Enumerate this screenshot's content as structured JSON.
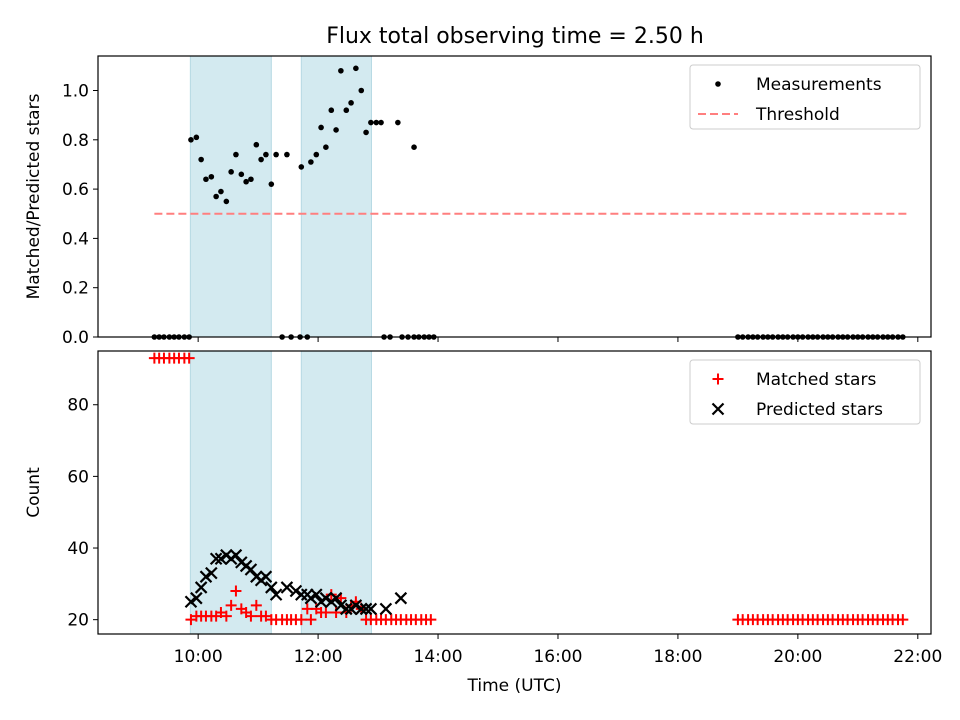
{
  "title": "Flux total observing time = 2.50 h",
  "chart_data": [
    {
      "type": "scatter",
      "panel": "top",
      "title": "Flux total observing time = 2.50 h",
      "xlabel": "",
      "ylabel": "Matched/Predicted stars",
      "x_unit": "hours UTC",
      "xlim": [
        8.33,
        22.22
      ],
      "ylim": [
        0,
        1.14
      ],
      "yticks": [
        0.0,
        0.2,
        0.4,
        0.6,
        0.8,
        1.0
      ],
      "ytick_labels": [
        "0.0",
        "0.2",
        "0.4",
        "0.6",
        "0.8",
        "1.0"
      ],
      "legend_position": "top-right",
      "shaded_intervals": [
        [
          9.87,
          11.22
        ],
        [
          11.72,
          12.89
        ]
      ],
      "shade_color": "#d3eaf0",
      "series": [
        {
          "name": "Measurements",
          "marker": "dot",
          "color": "#000000",
          "points": [
            [
              9.27,
              0
            ],
            [
              9.35,
              0
            ],
            [
              9.43,
              0
            ],
            [
              9.52,
              0
            ],
            [
              9.6,
              0
            ],
            [
              9.68,
              0
            ],
            [
              9.77,
              0
            ],
            [
              9.85,
              0
            ],
            [
              9.88,
              0.8
            ],
            [
              9.97,
              0.81
            ],
            [
              10.05,
              0.72
            ],
            [
              10.13,
              0.64
            ],
            [
              10.22,
              0.65
            ],
            [
              10.3,
              0.57
            ],
            [
              10.38,
              0.59
            ],
            [
              10.47,
              0.55
            ],
            [
              10.55,
              0.67
            ],
            [
              10.63,
              0.74
            ],
            [
              10.72,
              0.66
            ],
            [
              10.8,
              0.63
            ],
            [
              10.88,
              0.64
            ],
            [
              10.97,
              0.78
            ],
            [
              11.05,
              0.72
            ],
            [
              11.13,
              0.74
            ],
            [
              11.22,
              0.62
            ],
            [
              11.3,
              0.74
            ],
            [
              11.4,
              0
            ],
            [
              11.48,
              0.74
            ],
            [
              11.55,
              0
            ],
            [
              11.7,
              0
            ],
            [
              11.72,
              0.69
            ],
            [
              11.82,
              0
            ],
            [
              11.88,
              0.71
            ],
            [
              11.97,
              0.74
            ],
            [
              12.05,
              0.85
            ],
            [
              12.13,
              0.77
            ],
            [
              12.22,
              0.92
            ],
            [
              12.3,
              0.84
            ],
            [
              12.38,
              1.08
            ],
            [
              12.47,
              0.92
            ],
            [
              12.55,
              0.95
            ],
            [
              12.63,
              1.09
            ],
            [
              12.72,
              1.0
            ],
            [
              12.8,
              0.83
            ],
            [
              12.88,
              0.87
            ],
            [
              12.97,
              0.87
            ],
            [
              13.05,
              0.87
            ],
            [
              13.1,
              0
            ],
            [
              13.2,
              0
            ],
            [
              13.33,
              0.87
            ],
            [
              13.4,
              0
            ],
            [
              13.5,
              0
            ],
            [
              13.6,
              0
            ],
            [
              13.68,
              0
            ],
            [
              13.6,
              0.77
            ],
            [
              13.77,
              0
            ],
            [
              13.85,
              0
            ],
            [
              13.93,
              0
            ],
            [
              19.0,
              0
            ],
            [
              19.08,
              0
            ],
            [
              19.17,
              0
            ],
            [
              19.25,
              0
            ],
            [
              19.33,
              0
            ],
            [
              19.42,
              0
            ],
            [
              19.5,
              0
            ],
            [
              19.58,
              0
            ],
            [
              19.67,
              0
            ],
            [
              19.75,
              0
            ],
            [
              19.83,
              0
            ],
            [
              19.92,
              0
            ],
            [
              20.0,
              0
            ],
            [
              20.08,
              0
            ],
            [
              20.17,
              0
            ],
            [
              20.25,
              0
            ],
            [
              20.33,
              0
            ],
            [
              20.42,
              0
            ],
            [
              20.5,
              0
            ],
            [
              20.58,
              0
            ],
            [
              20.67,
              0
            ],
            [
              20.75,
              0
            ],
            [
              20.83,
              0
            ],
            [
              20.92,
              0
            ],
            [
              21.0,
              0
            ],
            [
              21.08,
              0
            ],
            [
              21.17,
              0
            ],
            [
              21.25,
              0
            ],
            [
              21.33,
              0
            ],
            [
              21.42,
              0
            ],
            [
              21.5,
              0
            ],
            [
              21.58,
              0
            ],
            [
              21.67,
              0
            ],
            [
              21.75,
              0
            ]
          ]
        },
        {
          "name": "Threshold",
          "marker": "dashed-line",
          "color": "#ff7f7f",
          "points": [
            [
              9.27,
              0.5
            ],
            [
              21.83,
              0.5
            ]
          ]
        }
      ]
    },
    {
      "type": "scatter",
      "panel": "bottom",
      "xlabel": "Time (UTC)",
      "ylabel": "Count",
      "x_unit": "hours UTC",
      "xlim": [
        8.33,
        22.22
      ],
      "ylim": [
        16,
        95
      ],
      "yticks": [
        20,
        40,
        60,
        80
      ],
      "ytick_labels": [
        "20",
        "40",
        "60",
        "80"
      ],
      "xticks": [
        10,
        12,
        14,
        16,
        18,
        20,
        22
      ],
      "xtick_labels": [
        "10:00",
        "12:00",
        "14:00",
        "16:00",
        "18:00",
        "20:00",
        "22:00"
      ],
      "legend_position": "top-right",
      "shaded_intervals": [
        [
          9.87,
          11.22
        ],
        [
          11.72,
          12.89
        ]
      ],
      "shade_color": "#d3eaf0",
      "series": [
        {
          "name": "Matched stars",
          "marker": "plus",
          "color": "#ff0000",
          "points": [
            [
              9.27,
              93
            ],
            [
              9.35,
              93
            ],
            [
              9.43,
              93
            ],
            [
              9.52,
              93
            ],
            [
              9.6,
              93
            ],
            [
              9.68,
              93
            ],
            [
              9.77,
              93
            ],
            [
              9.85,
              93
            ],
            [
              9.88,
              20
            ],
            [
              9.97,
              21
            ],
            [
              10.05,
              21
            ],
            [
              10.13,
              21
            ],
            [
              10.22,
              21
            ],
            [
              10.3,
              21
            ],
            [
              10.38,
              22
            ],
            [
              10.47,
              21
            ],
            [
              10.55,
              24
            ],
            [
              10.63,
              28
            ],
            [
              10.72,
              23
            ],
            [
              10.8,
              22
            ],
            [
              10.88,
              21
            ],
            [
              10.97,
              24
            ],
            [
              11.05,
              21
            ],
            [
              11.13,
              21
            ],
            [
              11.22,
              20
            ],
            [
              11.3,
              20
            ],
            [
              11.4,
              20
            ],
            [
              11.48,
              20
            ],
            [
              11.55,
              20
            ],
            [
              11.63,
              20
            ],
            [
              11.72,
              20
            ],
            [
              11.82,
              23
            ],
            [
              11.88,
              20
            ],
            [
              11.97,
              23
            ],
            [
              12.05,
              22
            ],
            [
              12.13,
              22
            ],
            [
              12.22,
              27
            ],
            [
              12.3,
              22
            ],
            [
              12.38,
              26
            ],
            [
              12.47,
              22
            ],
            [
              12.55,
              24
            ],
            [
              12.63,
              25
            ],
            [
              12.72,
              23
            ],
            [
              12.8,
              20
            ],
            [
              12.88,
              20
            ],
            [
              12.97,
              20
            ],
            [
              13.05,
              20
            ],
            [
              13.13,
              20
            ],
            [
              13.22,
              20
            ],
            [
              13.3,
              20
            ],
            [
              13.38,
              20
            ],
            [
              13.47,
              20
            ],
            [
              13.55,
              20
            ],
            [
              13.63,
              20
            ],
            [
              13.72,
              20
            ],
            [
              13.8,
              20
            ],
            [
              13.88,
              20
            ],
            [
              19.0,
              20
            ],
            [
              19.08,
              20
            ],
            [
              19.17,
              20
            ],
            [
              19.25,
              20
            ],
            [
              19.33,
              20
            ],
            [
              19.42,
              20
            ],
            [
              19.5,
              20
            ],
            [
              19.58,
              20
            ],
            [
              19.67,
              20
            ],
            [
              19.75,
              20
            ],
            [
              19.83,
              20
            ],
            [
              19.92,
              20
            ],
            [
              20.0,
              20
            ],
            [
              20.08,
              20
            ],
            [
              20.17,
              20
            ],
            [
              20.25,
              20
            ],
            [
              20.33,
              20
            ],
            [
              20.42,
              20
            ],
            [
              20.5,
              20
            ],
            [
              20.58,
              20
            ],
            [
              20.67,
              20
            ],
            [
              20.75,
              20
            ],
            [
              20.83,
              20
            ],
            [
              20.92,
              20
            ],
            [
              21.0,
              20
            ],
            [
              21.08,
              20
            ],
            [
              21.17,
              20
            ],
            [
              21.25,
              20
            ],
            [
              21.33,
              20
            ],
            [
              21.42,
              20
            ],
            [
              21.5,
              20
            ],
            [
              21.58,
              20
            ],
            [
              21.67,
              20
            ],
            [
              21.75,
              20
            ]
          ]
        },
        {
          "name": "Predicted stars",
          "marker": "x",
          "color": "#000000",
          "points": [
            [
              9.88,
              25
            ],
            [
              9.97,
              26
            ],
            [
              10.05,
              29
            ],
            [
              10.13,
              32
            ],
            [
              10.22,
              33
            ],
            [
              10.3,
              37
            ],
            [
              10.38,
              37
            ],
            [
              10.47,
              38
            ],
            [
              10.55,
              37
            ],
            [
              10.63,
              38
            ],
            [
              10.72,
              36
            ],
            [
              10.8,
              35
            ],
            [
              10.88,
              34
            ],
            [
              10.97,
              32
            ],
            [
              11.05,
              31
            ],
            [
              11.13,
              32
            ],
            [
              11.22,
              29
            ],
            [
              11.3,
              27
            ],
            [
              11.48,
              29
            ],
            [
              11.63,
              28
            ],
            [
              11.72,
              27
            ],
            [
              11.82,
              27
            ],
            [
              11.88,
              26
            ],
            [
              11.97,
              27
            ],
            [
              12.05,
              25
            ],
            [
              12.13,
              26
            ],
            [
              12.22,
              25
            ],
            [
              12.3,
              26
            ],
            [
              12.38,
              24
            ],
            [
              12.47,
              23
            ],
            [
              12.55,
              23
            ],
            [
              12.63,
              24
            ],
            [
              12.72,
              23
            ],
            [
              12.8,
              23
            ],
            [
              12.88,
              23
            ],
            [
              13.13,
              23
            ],
            [
              13.38,
              26
            ]
          ]
        }
      ]
    }
  ]
}
